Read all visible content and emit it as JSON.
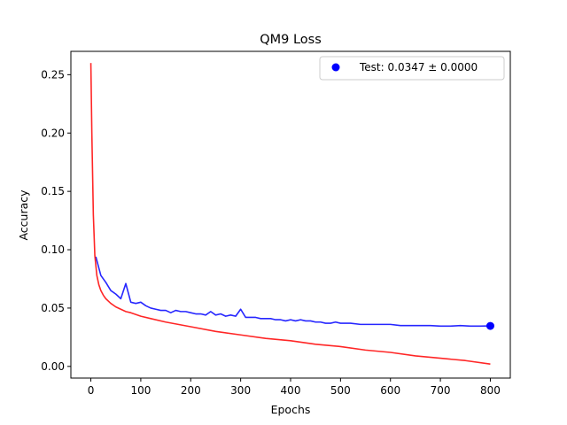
{
  "chart_data": {
    "type": "line",
    "title": "QM9 Loss",
    "xlabel": "Epochs",
    "ylabel": "Accuracy",
    "xlim": [
      -40,
      840
    ],
    "ylim": [
      -0.01,
      0.27
    ],
    "xticks": [
      0,
      100,
      200,
      300,
      400,
      500,
      600,
      700,
      800
    ],
    "yticks": [
      0.0,
      0.05,
      0.1,
      0.15,
      0.2,
      0.25
    ],
    "xtick_labels": [
      "0",
      "100",
      "200",
      "300",
      "400",
      "500",
      "600",
      "700",
      "800"
    ],
    "ytick_labels": [
      "0.00",
      "0.05",
      "0.10",
      "0.15",
      "0.20",
      "0.25"
    ],
    "grid": false,
    "legend_position": "top-right",
    "legend": [
      {
        "label": "Test: 0.0347 ± 0.0000",
        "marker": "circle",
        "color": "#0000ff"
      }
    ],
    "series": [
      {
        "color": "#0000ff",
        "x": [
          10,
          20,
          30,
          40,
          50,
          60,
          70,
          80,
          90,
          100,
          110,
          120,
          130,
          140,
          150,
          160,
          170,
          180,
          190,
          200,
          210,
          220,
          230,
          240,
          250,
          260,
          270,
          280,
          290,
          300,
          310,
          320,
          330,
          340,
          350,
          360,
          370,
          380,
          390,
          400,
          410,
          420,
          430,
          440,
          450,
          460,
          470,
          480,
          490,
          500,
          520,
          540,
          560,
          580,
          600,
          620,
          640,
          660,
          680,
          700,
          720,
          740,
          760,
          780,
          800
        ],
        "y": [
          0.094,
          0.078,
          0.072,
          0.065,
          0.062,
          0.058,
          0.071,
          0.055,
          0.054,
          0.055,
          0.052,
          0.05,
          0.049,
          0.048,
          0.048,
          0.046,
          0.048,
          0.047,
          0.047,
          0.046,
          0.045,
          0.045,
          0.044,
          0.047,
          0.044,
          0.045,
          0.043,
          0.044,
          0.043,
          0.049,
          0.042,
          0.042,
          0.042,
          0.041,
          0.041,
          0.041,
          0.04,
          0.04,
          0.039,
          0.04,
          0.039,
          0.04,
          0.039,
          0.039,
          0.038,
          0.038,
          0.037,
          0.037,
          0.038,
          0.037,
          0.037,
          0.036,
          0.036,
          0.036,
          0.036,
          0.035,
          0.035,
          0.035,
          0.035,
          0.0345,
          0.0345,
          0.035,
          0.0345,
          0.0345,
          0.0347
        ]
      },
      {
        "color": "#ff0000",
        "x": [
          0,
          2,
          5,
          8,
          12,
          16,
          20,
          25,
          30,
          40,
          50,
          60,
          70,
          80,
          100,
          120,
          150,
          200,
          250,
          300,
          350,
          400,
          450,
          500,
          550,
          600,
          650,
          700,
          750,
          800
        ],
        "y": [
          0.26,
          0.2,
          0.13,
          0.095,
          0.078,
          0.07,
          0.065,
          0.061,
          0.058,
          0.054,
          0.051,
          0.049,
          0.047,
          0.046,
          0.043,
          0.041,
          0.038,
          0.034,
          0.03,
          0.027,
          0.024,
          0.022,
          0.019,
          0.017,
          0.014,
          0.012,
          0.009,
          0.007,
          0.005,
          0.002
        ]
      }
    ],
    "test_point": {
      "x": 800,
      "y": 0.0347,
      "color": "#0000ff"
    }
  }
}
